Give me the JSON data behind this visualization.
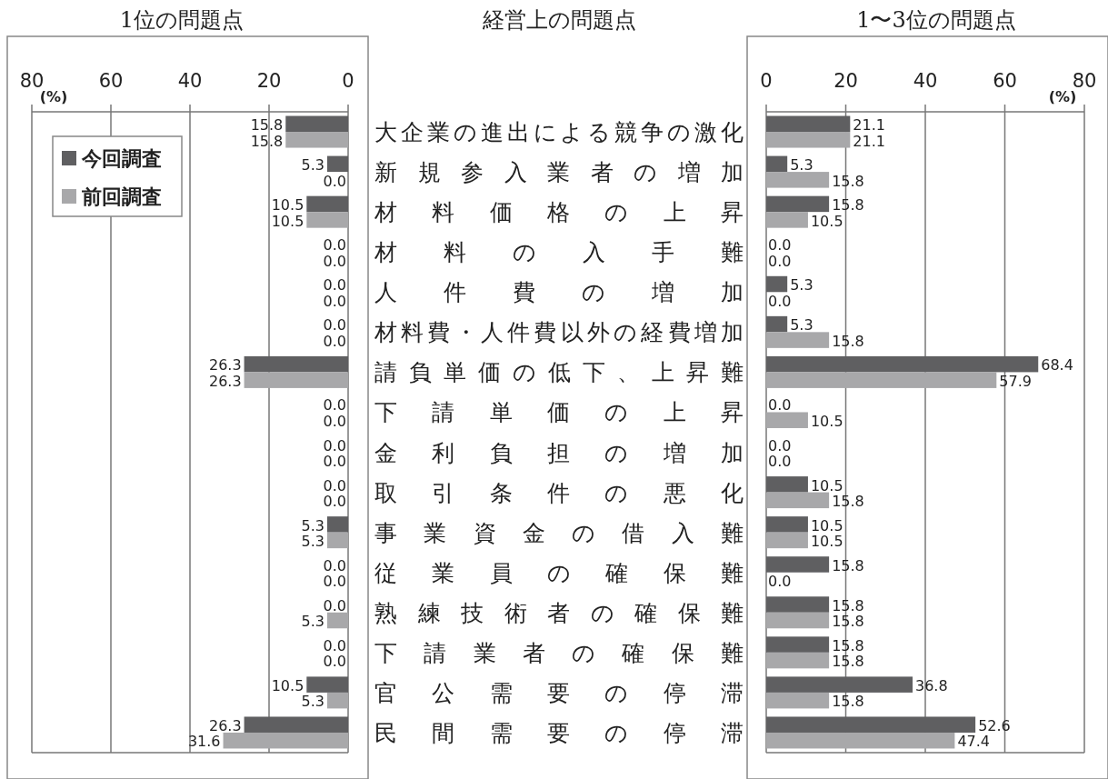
{
  "chart_data": [
    {
      "type": "bar",
      "orientation": "horizontal",
      "title": "1位の問題点",
      "ylabel": "経営上の問題点",
      "xlabel": "(%)",
      "categories": [
        "大企業の進出による競争の激化",
        "新規参入業者の増加",
        "材料価格の上昇",
        "材料の入手難",
        "人件費の増加",
        "材料費・人件費以外の経費増加",
        "請負単価の低下、上昇難",
        "下請単価の上昇",
        "金利負担の増加",
        "取引条件の悪化",
        "事業資金の借入難",
        "従業員の確保難",
        "熟練技術者の確保難",
        "下請業者の確保難",
        "官公需要の停滞",
        "民間需要の停滞"
      ],
      "series": [
        {
          "name": "今回調査",
          "color": "#5f5f61",
          "values": [
            15.8,
            5.3,
            10.5,
            0,
            0,
            0,
            26.3,
            0,
            0,
            0,
            5.3,
            0,
            0,
            0,
            10.5,
            26.3
          ],
          "value_labels": [
            "15.8",
            "5.3",
            "10.5",
            "0.0",
            "0.0",
            "0.0",
            "26.3",
            "0.0",
            "0.0",
            "0.0",
            "5.3",
            "0.0",
            "0.0",
            "0.0",
            "10.5",
            "26.3"
          ]
        },
        {
          "name": "前回調査",
          "color": "#a8a8aa",
          "values": [
            15.8,
            0,
            10.5,
            0,
            0,
            0,
            26.3,
            0,
            0,
            0,
            5.3,
            0,
            5.3,
            0,
            5.3,
            31.6
          ],
          "value_labels": [
            "15.8",
            "0.0",
            "10.5",
            "0.0",
            "0.0",
            "0.0",
            "26.3",
            "0.0",
            "0.0",
            "0.0",
            "5.3",
            "0.0",
            "5.3",
            "0.0",
            "5.3",
            "31.6"
          ]
        }
      ],
      "xlim": [
        80,
        0
      ],
      "xticks": [
        80,
        60,
        40,
        20,
        0
      ],
      "grid": "x",
      "legend": "top left"
    },
    {
      "type": "bar",
      "orientation": "horizontal",
      "title": "1〜3位の問題点",
      "xlabel": "(%)",
      "categories": [
        null,
        null,
        null,
        null,
        null,
        null,
        null,
        null,
        null,
        null,
        null,
        null,
        null,
        null,
        null,
        null
      ],
      "series": [
        {
          "color": "#5f5f61",
          "values": [
            21.1,
            5.3,
            15.8,
            0,
            5.3,
            5.3,
            68.4,
            0,
            0,
            10.5,
            10.5,
            15.8,
            15.8,
            15.8,
            36.8,
            52.6
          ],
          "value_labels": [
            "21.1",
            "5.3",
            "15.8",
            "0.0",
            "5.3",
            "5.3",
            "68.4",
            "0.0",
            "0.0",
            "10.5",
            "10.5",
            "15.8",
            "15.8",
            "15.8",
            "36.8",
            "52.6"
          ]
        },
        {
          "color": "#a8a8aa",
          "values": [
            21.1,
            15.8,
            10.5,
            0,
            0,
            15.8,
            57.9,
            10.5,
            0,
            15.8,
            10.5,
            0,
            15.8,
            15.8,
            15.8,
            47.4
          ],
          "value_labels": [
            "21.1",
            "15.8",
            "10.5",
            "0.0",
            "0.0",
            "15.8",
            "57.9",
            "10.5",
            "0.0",
            "15.8",
            "10.5",
            "0.0",
            "15.8",
            "15.8",
            "15.8",
            "47.4"
          ]
        }
      ],
      "xlim": [
        0,
        80
      ],
      "xticks": [
        0,
        20,
        40,
        60,
        80
      ],
      "grid": "x",
      "tick_labels": "x"
    }
  ]
}
